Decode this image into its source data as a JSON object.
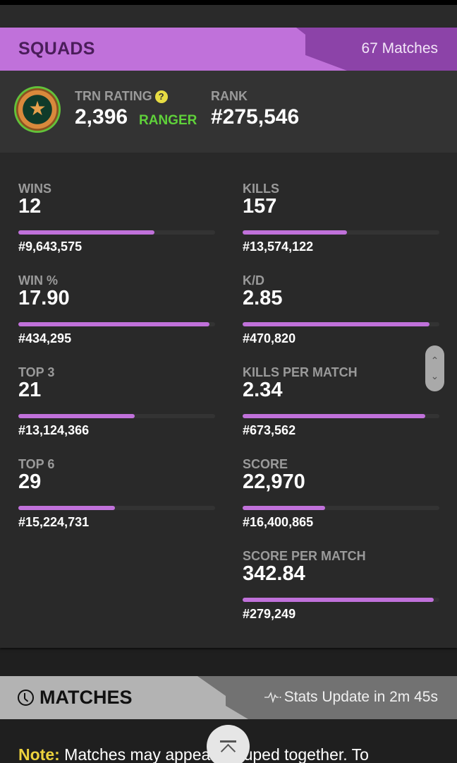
{
  "squads": {
    "title": "SQUADS",
    "matches": "67 Matches",
    "accent_color": "#c071da",
    "accent_dark": "#8c43a8"
  },
  "rating": {
    "badge_icon": "ranger-badge-icon",
    "trn_label": "TRN RATING",
    "help_icon": "?",
    "trn_value": "2,396",
    "tier": "RANGER",
    "tier_color": "#5fd13a",
    "rank_label": "RANK",
    "rank_value": "#275,546"
  },
  "stats": [
    {
      "label": "WINS",
      "value": "12",
      "rank": "#9,643,575",
      "percentile_fill": 69
    },
    {
      "label": "KILLS",
      "value": "157",
      "rank": "#13,574,122",
      "percentile_fill": 53
    },
    {
      "label": "WIN %",
      "value": "17.90",
      "rank": "#434,295",
      "percentile_fill": 97
    },
    {
      "label": "K/D",
      "value": "2.85",
      "rank": "#470,820",
      "percentile_fill": 95
    },
    {
      "label": "TOP 3",
      "value": "21",
      "rank": "#13,124,366",
      "percentile_fill": 59
    },
    {
      "label": "KILLS PER MATCH",
      "value": "2.34",
      "rank": "#673,562",
      "percentile_fill": 93
    },
    {
      "label": "TOP 6",
      "value": "29",
      "rank": "#15,224,731",
      "percentile_fill": 49
    },
    {
      "label": "SCORE",
      "value": "22,970",
      "rank": "#16,400,865",
      "percentile_fill": 42
    },
    {
      "label": "SCORE PER MATCH",
      "value": "342.84",
      "rank": "#279,249",
      "percentile_fill": 97
    }
  ],
  "scroll_widget": {
    "up": "⌃",
    "down": "⌄"
  },
  "matches": {
    "title": "MATCHES",
    "stats_update": "Stats Update in 2m 45s"
  },
  "note": {
    "label": "Note:",
    "text": " Matches may appear grouped together. To"
  }
}
